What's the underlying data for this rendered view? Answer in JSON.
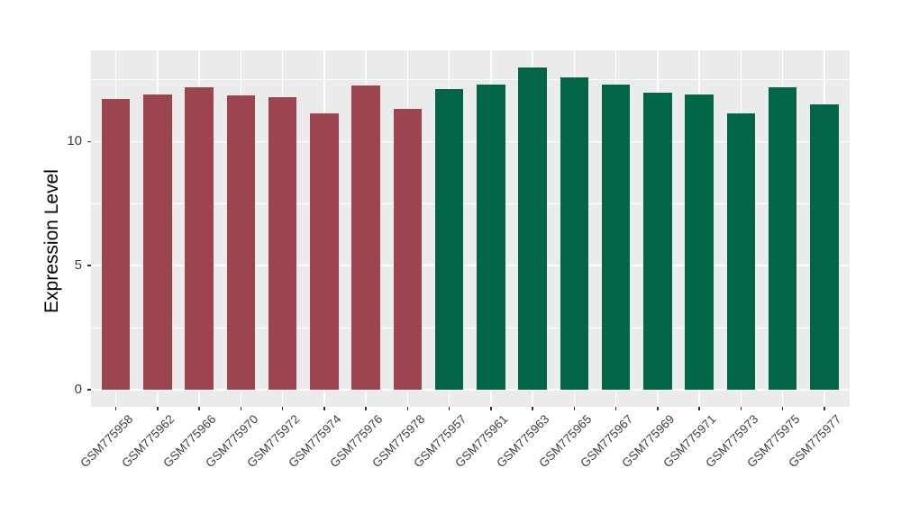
{
  "chart_data": {
    "type": "bar",
    "title": "",
    "xlabel": "",
    "ylabel": "Expression Level",
    "categories": [
      "GSM775958",
      "GSM775962",
      "GSM775966",
      "GSM775970",
      "GSM775972",
      "GSM775974",
      "GSM775976",
      "GSM775978",
      "GSM775957",
      "GSM775961",
      "GSM775963",
      "GSM775965",
      "GSM775967",
      "GSM775969",
      "GSM775971",
      "GSM775973",
      "GSM775975",
      "GSM775977"
    ],
    "values": [
      11.7,
      11.9,
      12.2,
      11.85,
      11.8,
      11.15,
      12.25,
      11.3,
      12.1,
      12.3,
      13.0,
      12.6,
      12.3,
      11.95,
      11.9,
      11.15,
      12.2,
      11.5
    ],
    "bar_group": [
      0,
      0,
      0,
      0,
      0,
      0,
      0,
      0,
      1,
      1,
      1,
      1,
      1,
      1,
      1,
      1,
      1,
      1
    ],
    "group_colors": [
      "#9C4450",
      "#006647"
    ],
    "ylim": [
      0,
      13.67
    ],
    "y_tick_values": [
      0,
      5,
      10
    ],
    "y_tick_labels": [
      "0",
      "5",
      "10"
    ],
    "y_minor_gridlines": [
      2.5,
      7.5,
      12.5
    ],
    "grid": "on",
    "legend_position": "none",
    "x_tick_rotation_deg": 45,
    "panel_background": "#EBEBEB",
    "grid_color": "#FFFFFF",
    "axis_text_color": "#404040",
    "tick_mark_color": "#333333"
  }
}
